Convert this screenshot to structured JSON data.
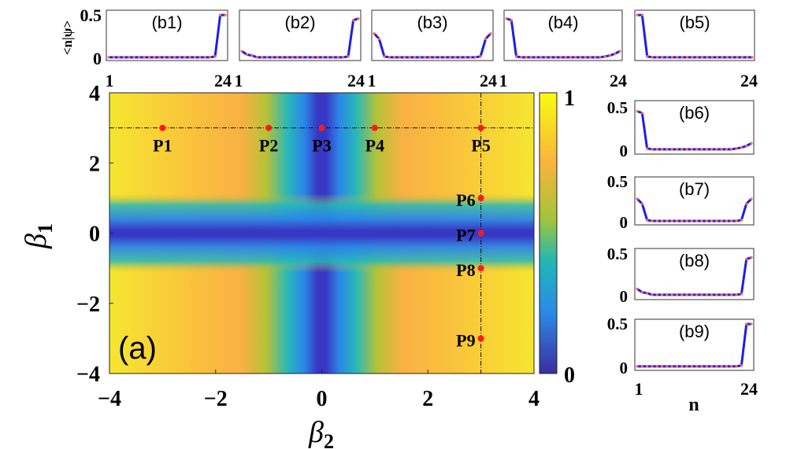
{
  "chart_data": [
    {
      "type": "heatmap",
      "panel": "(a)",
      "xlabel": "β2",
      "ylabel": "β1",
      "xlim": [
        -4,
        4
      ],
      "ylim": [
        -4,
        4
      ],
      "xticks": [
        "-4",
        "-2",
        "0",
        "2",
        "4"
      ],
      "yticks": [
        "4",
        "2",
        "0",
        "-2",
        "-4"
      ],
      "colorbar": {
        "min": 0,
        "max": 1,
        "ticks": [
          "1",
          "0"
        ]
      },
      "guide_lines": {
        "horizontal_beta1": 3,
        "vertical_beta2": 3
      },
      "points": [
        {
          "label": "P1",
          "beta2": -3,
          "beta1": 3
        },
        {
          "label": "P2",
          "beta2": -1,
          "beta1": 3
        },
        {
          "label": "P3",
          "beta2": 0,
          "beta1": 3
        },
        {
          "label": "P4",
          "beta2": 1,
          "beta1": 3
        },
        {
          "label": "P5",
          "beta2": 3,
          "beta1": 3
        },
        {
          "label": "P6",
          "beta2": 3,
          "beta1": 1
        },
        {
          "label": "P7",
          "beta2": 3,
          "beta1": 0
        },
        {
          "label": "P8",
          "beta2": 3,
          "beta1": -1
        },
        {
          "label": "P9",
          "beta2": 3,
          "beta1": -3
        }
      ]
    },
    {
      "type": "line",
      "panels_top": [
        {
          "label": "(b1)",
          "x_ticks": [
            "1",
            "24"
          ],
          "y_ticks": [
            "0.5",
            "0"
          ],
          "ylabel": "<n|ψ>",
          "values": [
            0.01,
            0.01,
            0.01,
            0.01,
            0.01,
            0.01,
            0.01,
            0.01,
            0.01,
            0.01,
            0.01,
            0.01,
            0.01,
            0.01,
            0.01,
            0.01,
            0.01,
            0.01,
            0.01,
            0.01,
            0.01,
            0.02,
            0.49,
            0.49
          ]
        },
        {
          "label": "(b2)",
          "x_ticks": [
            "24",
            "1"
          ],
          "values": [
            0.08,
            0.04,
            0.03,
            0.01,
            0.01,
            0.01,
            0.01,
            0.01,
            0.01,
            0.01,
            0.01,
            0.01,
            0.01,
            0.01,
            0.01,
            0.01,
            0.01,
            0.01,
            0.01,
            0.01,
            0.01,
            0.02,
            0.43,
            0.45
          ]
        },
        {
          "label": "(b3)",
          "x_ticks": [
            "24",
            "1"
          ],
          "values": [
            0.28,
            0.22,
            0.02,
            0.01,
            0.01,
            0.01,
            0.01,
            0.01,
            0.01,
            0.01,
            0.01,
            0.01,
            0.01,
            0.01,
            0.01,
            0.01,
            0.01,
            0.01,
            0.01,
            0.01,
            0.01,
            0.02,
            0.22,
            0.28
          ]
        },
        {
          "label": "(b4)",
          "x_ticks": [
            "24",
            "1"
          ],
          "values": [
            0.45,
            0.43,
            0.02,
            0.01,
            0.01,
            0.01,
            0.01,
            0.01,
            0.01,
            0.01,
            0.01,
            0.01,
            0.01,
            0.01,
            0.01,
            0.01,
            0.01,
            0.01,
            0.01,
            0.01,
            0.02,
            0.03,
            0.05,
            0.08
          ]
        },
        {
          "label": "(b5)",
          "x_ticks": [
            "24"
          ],
          "values": [
            0.49,
            0.49,
            0.02,
            0.01,
            0.01,
            0.01,
            0.01,
            0.01,
            0.01,
            0.01,
            0.01,
            0.01,
            0.01,
            0.01,
            0.01,
            0.01,
            0.01,
            0.01,
            0.01,
            0.01,
            0.01,
            0.01,
            0.01,
            0.01
          ]
        }
      ],
      "panels_side": [
        {
          "label": "(b6)",
          "y_ticks": [
            "0.5",
            "0"
          ],
          "values": [
            0.45,
            0.43,
            0.02,
            0.01,
            0.01,
            0.01,
            0.01,
            0.01,
            0.01,
            0.01,
            0.01,
            0.01,
            0.01,
            0.01,
            0.01,
            0.01,
            0.01,
            0.01,
            0.01,
            0.01,
            0.02,
            0.03,
            0.05,
            0.08
          ]
        },
        {
          "label": "(b7)",
          "y_ticks": [
            "0.5",
            "0"
          ],
          "values": [
            0.28,
            0.22,
            0.02,
            0.01,
            0.01,
            0.01,
            0.01,
            0.01,
            0.01,
            0.01,
            0.01,
            0.01,
            0.01,
            0.01,
            0.01,
            0.01,
            0.01,
            0.01,
            0.01,
            0.01,
            0.01,
            0.02,
            0.22,
            0.28
          ]
        },
        {
          "label": "(b8)",
          "y_ticks": [
            "0.5",
            "0"
          ],
          "values": [
            0.08,
            0.04,
            0.03,
            0.01,
            0.01,
            0.01,
            0.01,
            0.01,
            0.01,
            0.01,
            0.01,
            0.01,
            0.01,
            0.01,
            0.01,
            0.01,
            0.01,
            0.01,
            0.01,
            0.01,
            0.01,
            0.02,
            0.43,
            0.45
          ]
        },
        {
          "label": "(b9)",
          "y_ticks": [
            "0.5",
            "0"
          ],
          "values": [
            0.01,
            0.01,
            0.01,
            0.01,
            0.01,
            0.01,
            0.01,
            0.01,
            0.01,
            0.01,
            0.01,
            0.01,
            0.01,
            0.01,
            0.01,
            0.01,
            0.01,
            0.01,
            0.01,
            0.01,
            0.01,
            0.02,
            0.49,
            0.49
          ]
        }
      ],
      "side_x_ticks": [
        "1",
        "24"
      ],
      "side_xlabel": "n"
    }
  ]
}
